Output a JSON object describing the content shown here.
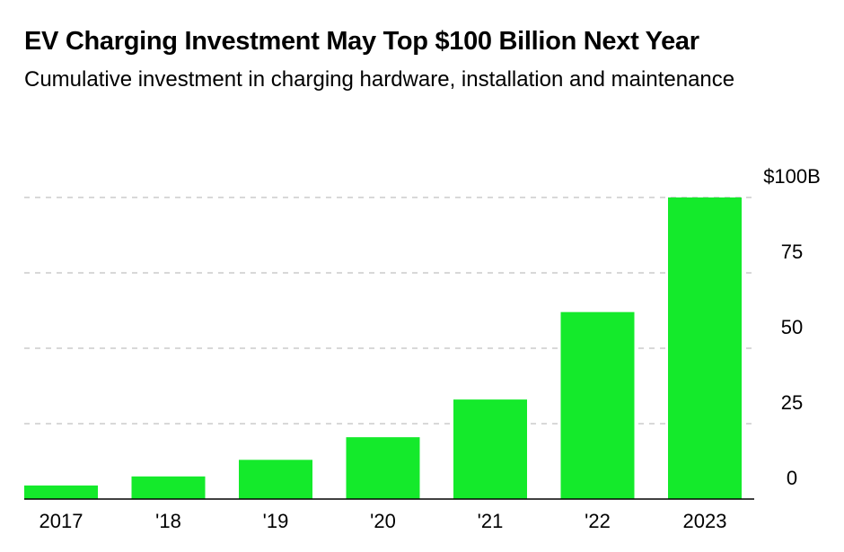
{
  "title": "EV Charging Investment May Top $100 Billion Next Year",
  "subtitle": "Cumulative investment in charging hardware, installation and maintenance",
  "colors": {
    "bar": "#14ea2b",
    "gridline": "#cccccc",
    "baseline": "#000000",
    "text": "#000000"
  },
  "chart_data": {
    "type": "bar",
    "title": "EV Charging Investment May Top $100 Billion Next Year",
    "subtitle": "Cumulative investment in charging hardware, installation and maintenance",
    "categories": [
      "2017",
      "'18",
      "'19",
      "'20",
      "'21",
      "'22",
      "2023"
    ],
    "values": [
      4.5,
      7.5,
      13,
      20.5,
      33,
      62,
      100
    ],
    "units": "billion USD",
    "ylim": [
      0,
      100
    ],
    "yticks": [
      0,
      25,
      50,
      75,
      100
    ],
    "ytick_labels": [
      "0",
      "25",
      "50",
      "75",
      "$100B"
    ],
    "xlabel": "",
    "ylabel": "",
    "grid": true,
    "y_axis_position": "right",
    "legend": null
  }
}
